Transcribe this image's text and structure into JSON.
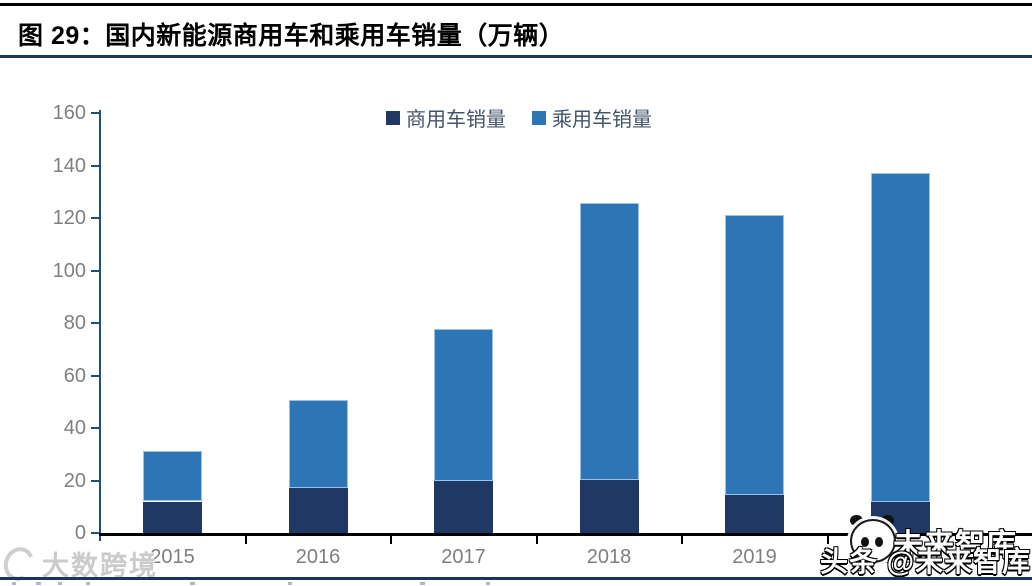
{
  "figure": {
    "title": "图 29：国内新能源商用车和乘用车销量（万辆）"
  },
  "chart_data": {
    "type": "bar",
    "stacked": true,
    "title": "国内新能源商用车和乘用车销量（万辆）",
    "unit": "万辆",
    "categories": [
      "2015",
      "2016",
      "2017",
      "2018",
      "2019",
      "2020"
    ],
    "series": [
      {
        "name": "商用车销量",
        "color": "#1F3864",
        "values": [
          12.0,
          17.0,
          19.8,
          20.3,
          14.6,
          11.7
        ]
      },
      {
        "name": "乘用车销量",
        "color": "#2E75B6",
        "values": [
          19.3,
          33.7,
          58.0,
          105.5,
          106.4,
          125.3
        ]
      }
    ],
    "totals": [
      31.3,
      50.7,
      77.8,
      125.8,
      121.0,
      137.0
    ],
    "ylim": [
      0,
      160
    ],
    "ytick_step": 20,
    "legend_position": "top-center",
    "grid": false,
    "axis_color": "#1F4E79",
    "x_axis_color": "#000000",
    "tick_label_color": "#7F7F7F"
  },
  "watermarks": {
    "bottom_left_text": "大数跨境",
    "bottom_right_main": "头条 @未来智库",
    "bottom_right_ghost": "未来智库"
  }
}
